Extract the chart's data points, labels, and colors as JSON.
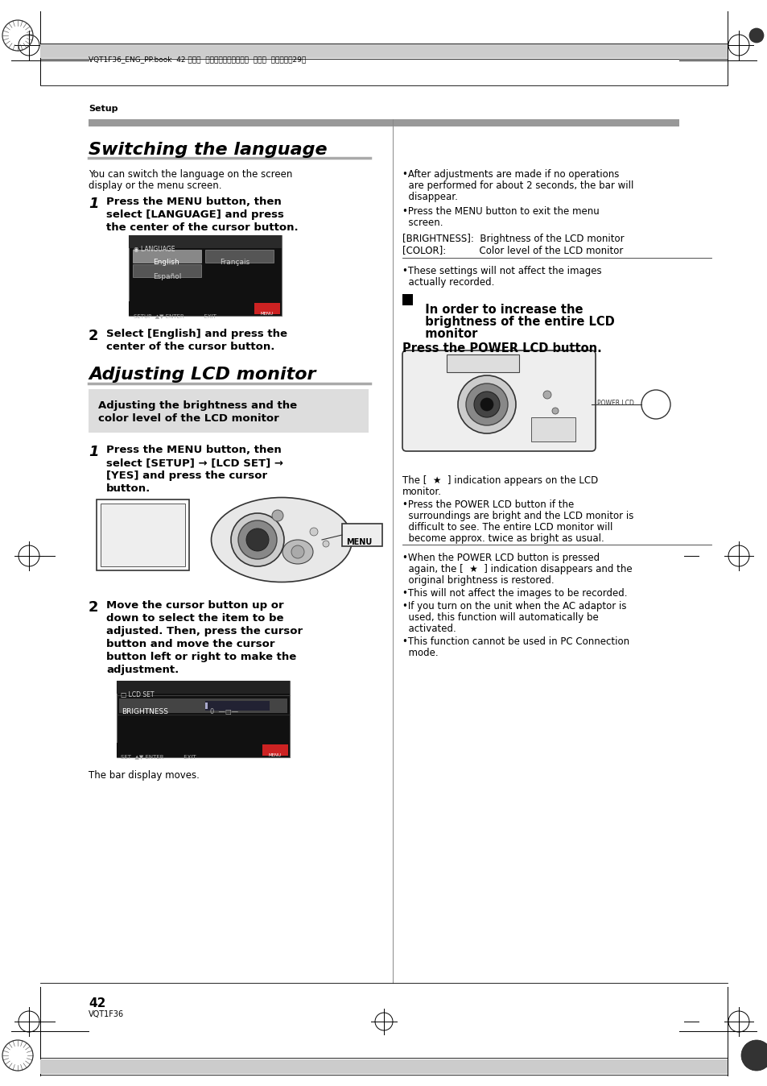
{
  "page_bg": "#ffffff",
  "header_text": "VQT1F36_ENG_PP.book  42 ページ  ２００７年２月２６日  月曜日  午前１１晉29分",
  "section_label": "Setup",
  "title_switching": "Switching the language",
  "intro_text1": "You can switch the language on the screen",
  "intro_text2": "display or the menu screen.",
  "step1s_text1": "Press the MENU button, then",
  "step1s_text2": "select [LANGUAGE] and press",
  "step1s_text3": "the center of the cursor button.",
  "step2s_text1": "Select [English] and press the",
  "step2s_text2": "center of the cursor button.",
  "title_adjusting": "Adjusting LCD monitor",
  "gray_box_line1": "Adjusting the brightness and the",
  "gray_box_line2": "color level of the LCD monitor",
  "step1a_text1": "Press the MENU button, then",
  "step1a_text2": "select [SETUP] → [LCD SET] →",
  "step1a_text3": "[YES] and press the cursor",
  "step1a_text4": "button.",
  "step2a_text1": "Move the cursor button up or",
  "step2a_text2": "down to select the item to be",
  "step2a_text3": "adjusted. Then, press the cursor",
  "step2a_text4": "button and move the cursor",
  "step2a_text5": "button left or right to make the",
  "step2a_text6": "adjustment.",
  "bar_display": "The bar display moves.",
  "r_bullet1a": "•After adjustments are made if no operations",
  "r_bullet1b": "  are performed for about 2 seconds, the bar will",
  "r_bullet1c": "  disappear.",
  "r_bullet2a": "•Press the MENU button to exit the menu",
  "r_bullet2b": "  screen.",
  "r_bright": "[BRIGHTNESS]:  Brightness of the LCD monitor",
  "r_color": "[COLOR]:           Color level of the LCD monitor",
  "r_bullet3a": "•These settings will not affect the images",
  "r_bullet3b": "  actually recorded.",
  "r_box1": "  In order to increase the",
  "r_box2": "  brightness of the entire LCD",
  "r_box3": "  monitor",
  "r_box4": "Press the POWER LCD button.",
  "r_lcd1": "The [  ★  ] indication appears on the LCD",
  "r_lcd2": "monitor.",
  "r_b4a": "•Press the POWER LCD button if the",
  "r_b4b": "  surroundings are bright and the LCD monitor is",
  "r_b4c": "  difficult to see. The entire LCD monitor will",
  "r_b4d": "  become approx. twice as bright as usual.",
  "r_b5a": "•When the POWER LCD button is pressed",
  "r_b5b": "  again, the [  ★  ] indication disappears and the",
  "r_b5c": "  original brightness is restored.",
  "r_b6": "•This will not affect the images to be recorded.",
  "r_b7a": "•If you turn on the unit when the AC adaptor is",
  "r_b7b": "  used, this function will automatically be",
  "r_b7c": "  activated.",
  "r_b8a": "•This function cannot be used in PC Connection",
  "r_b8b": "  mode.",
  "page_num": "42",
  "page_code": "VQT1F36"
}
